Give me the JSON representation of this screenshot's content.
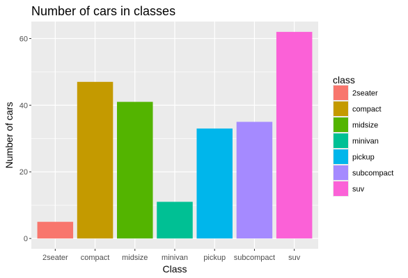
{
  "chart_data": {
    "type": "bar",
    "title": "Number of cars in classes",
    "xlabel": "Class",
    "ylabel": "Number of cars",
    "categories": [
      "2seater",
      "compact",
      "midsize",
      "minivan",
      "pickup",
      "subcompact",
      "suv"
    ],
    "values": [
      5,
      47,
      41,
      11,
      33,
      35,
      62
    ],
    "colors": [
      "#F8766D",
      "#C49A00",
      "#53B400",
      "#00C094",
      "#00B6EB",
      "#A58AFF",
      "#FB61D7"
    ],
    "ylim": [
      0,
      62
    ],
    "yticks": [
      0,
      20,
      40,
      60
    ],
    "yticklabels": [
      "0",
      "20",
      "40",
      "60"
    ],
    "grid": true,
    "panel_background": "#EBEBEB",
    "legend": {
      "title": "class",
      "position": "right",
      "entries": [
        "2seater",
        "compact",
        "midsize",
        "minivan",
        "pickup",
        "subcompact",
        "suv"
      ]
    }
  }
}
